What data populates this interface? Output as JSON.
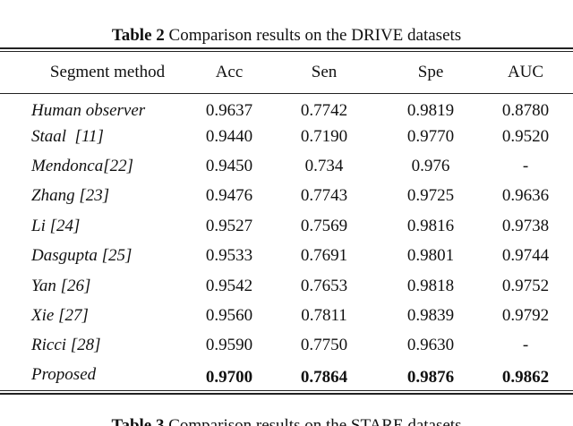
{
  "table": {
    "caption_label": "Table 2",
    "caption": "Comparison results on the DRIVE datasets",
    "header": [
      "Segment method",
      "Acc",
      "Sen",
      "Spe",
      "AUC"
    ],
    "rows": [
      [
        "Human observer",
        "0.9637",
        "0.7742",
        "0.9819",
        "0.8780"
      ],
      [
        "Staal  [11]",
        "0.9440",
        "0.7190",
        "0.9770",
        "0.9520"
      ],
      [
        "Mendonca[22]",
        "0.9450",
        "0.734",
        "0.976",
        "-"
      ],
      [
        "Zhang [23]",
        "0.9476",
        "0.7743",
        "0.9725",
        "0.9636"
      ],
      [
        "Li [24]",
        "0.9527",
        "0.7569",
        "0.9816",
        "0.9738"
      ],
      [
        "Dasgupta [25]",
        "0.9533",
        "0.7691",
        "0.9801",
        "0.9744"
      ],
      [
        "Yan [26]",
        "0.9542",
        "0.7653",
        "0.9818",
        "0.9752"
      ],
      [
        "Xie [27]",
        "0.9560",
        "0.7811",
        "0.9839",
        "0.9792"
      ],
      [
        "Ricci [28]",
        "0.9590",
        "0.7750",
        "0.9630",
        "-"
      ],
      [
        "Proposed",
        "0.9700",
        "0.7864",
        "0.9876",
        "0.9862"
      ]
    ]
  },
  "next_table": {
    "caption_label": "Table 3",
    "caption": "Comparison results on the STARE datasets"
  }
}
